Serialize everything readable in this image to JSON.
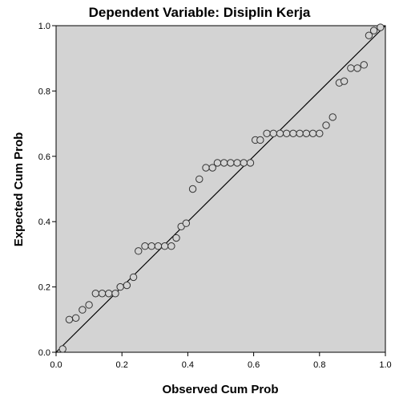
{
  "chart_data": {
    "type": "scatter",
    "title": "Dependent Variable: Disiplin Kerja",
    "xlabel": "Observed Cum Prob",
    "ylabel": "Expected Cum Prob",
    "xlim": [
      0.0,
      1.0
    ],
    "ylim": [
      0.0,
      1.0
    ],
    "xticks": [
      "0.0",
      "0.2",
      "0.4",
      "0.6",
      "0.8",
      "1.0"
    ],
    "yticks": [
      "0.0",
      "0.2",
      "0.4",
      "0.6",
      "0.8",
      "1.0"
    ],
    "grid": false,
    "legend": "none",
    "reference_line": [
      [
        0.0,
        0.0
      ],
      [
        1.0,
        1.0
      ]
    ],
    "colors": {
      "plot_background": "#d3d3d3",
      "marker_fill": "#d3d3d3",
      "marker_stroke": "#333333",
      "line": "#000000"
    },
    "points": [
      [
        0.02,
        0.01
      ],
      [
        0.04,
        0.1
      ],
      [
        0.06,
        0.105
      ],
      [
        0.08,
        0.13
      ],
      [
        0.1,
        0.145
      ],
      [
        0.12,
        0.18
      ],
      [
        0.14,
        0.18
      ],
      [
        0.16,
        0.18
      ],
      [
        0.18,
        0.18
      ],
      [
        0.195,
        0.2
      ],
      [
        0.215,
        0.205
      ],
      [
        0.235,
        0.23
      ],
      [
        0.25,
        0.31
      ],
      [
        0.27,
        0.325
      ],
      [
        0.29,
        0.325
      ],
      [
        0.31,
        0.325
      ],
      [
        0.33,
        0.325
      ],
      [
        0.35,
        0.325
      ],
      [
        0.365,
        0.35
      ],
      [
        0.38,
        0.385
      ],
      [
        0.395,
        0.395
      ],
      [
        0.415,
        0.5
      ],
      [
        0.435,
        0.53
      ],
      [
        0.455,
        0.565
      ],
      [
        0.475,
        0.565
      ],
      [
        0.49,
        0.58
      ],
      [
        0.51,
        0.58
      ],
      [
        0.53,
        0.58
      ],
      [
        0.55,
        0.58
      ],
      [
        0.57,
        0.58
      ],
      [
        0.59,
        0.58
      ],
      [
        0.605,
        0.65
      ],
      [
        0.62,
        0.65
      ],
      [
        0.64,
        0.67
      ],
      [
        0.66,
        0.67
      ],
      [
        0.68,
        0.67
      ],
      [
        0.7,
        0.67
      ],
      [
        0.72,
        0.67
      ],
      [
        0.74,
        0.67
      ],
      [
        0.76,
        0.67
      ],
      [
        0.78,
        0.67
      ],
      [
        0.8,
        0.67
      ],
      [
        0.82,
        0.695
      ],
      [
        0.84,
        0.72
      ],
      [
        0.86,
        0.825
      ],
      [
        0.875,
        0.83
      ],
      [
        0.895,
        0.87
      ],
      [
        0.915,
        0.87
      ],
      [
        0.935,
        0.88
      ],
      [
        0.95,
        0.97
      ],
      [
        0.965,
        0.985
      ],
      [
        0.985,
        0.995
      ]
    ]
  }
}
